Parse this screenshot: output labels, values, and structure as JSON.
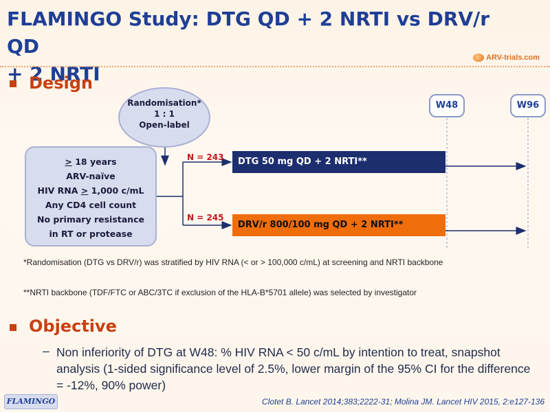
{
  "title": {
    "line1": "FLAMINGO Study: DTG QD + 2 NRTI vs DRV/r QD",
    "line2": "+ 2 NRTI"
  },
  "logo": {
    "text": "ARV-trials.com"
  },
  "sections": {
    "design": "Design",
    "objective": "Objective"
  },
  "randomisation": {
    "line1": "Randomisation*",
    "line2": "1 : 1",
    "line3": "Open-label"
  },
  "criteria": {
    "age_prefix": ">",
    "age_rest": " 18 years",
    "line2": "ARV-naïve",
    "line3_a": "HIV RNA ",
    "line3_u": ">",
    "line3_b": " 1,000 c/mL",
    "line4": "Any CD4 cell count",
    "line5": "No primary resistance",
    "line6": "in RT or protease"
  },
  "arms": [
    {
      "n_label": "N = 243",
      "label": "DTG 50 mg QD + 2 NRTI**",
      "color": "#1c2e6e"
    },
    {
      "n_label": "N = 245",
      "label": "DRV/r 800/100 mg QD + 2 NRTI**",
      "color": "#f06d0c"
    }
  ],
  "timepoints": [
    "W48",
    "W96"
  ],
  "notes": {
    "note1": "*Randomisation (DTG vs DRV/r) was stratified by HIV RNA (< or > 100,000 c/mL) at screening and NRTI backbone",
    "note2": "**NRTI backbone (TDF/FTC or ABC/3TC if exclusion of the HLA-B*5701 allele) was selected by investigator"
  },
  "objective": {
    "dash": "–",
    "text": "Non inferiority of DTG at W48: % HIV RNA < 50 c/mL by intention to treat, snapshot analysis (1-sided significance level of 2.5%, lower margin of the 95% CI for the difference = -12%, 90% power)"
  },
  "footer": {
    "tag": "FLAMINGO",
    "citation": "Clotet B. Lancet 2014;383;2222-31; Molina JM. Lancet HIV 2015, 2:e127-136"
  }
}
